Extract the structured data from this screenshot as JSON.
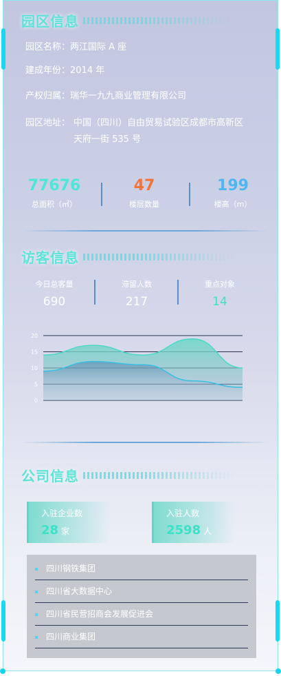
{
  "park": {
    "title": "园区信息",
    "rows": [
      {
        "label": "园区名称：",
        "value": "两江国际 A 座"
      },
      {
        "label": "建成年份：",
        "value": "2014 年"
      },
      {
        "label": "产权归属：",
        "value": "瑞华一九九商业管理有限公司"
      }
    ],
    "address": {
      "label": "园区地址：",
      "line1": "中国（四川）自由贸易试验区成都市高新区",
      "line2": "天府一街 535 号"
    },
    "stats": [
      {
        "value": "77676",
        "caption": "总面积（㎡）",
        "color": "#4ee6d6"
      },
      {
        "value": "47",
        "caption": "楼层数量",
        "color": "#f2743d"
      },
      {
        "value": "199",
        "caption": "楼高（m）",
        "color": "#4fb6f0"
      }
    ]
  },
  "visitor": {
    "title": "访客信息",
    "stats": [
      {
        "caption": "今日总客量",
        "value": "690"
      },
      {
        "caption": "滞留人数",
        "value": "217"
      },
      {
        "caption": "重点对象",
        "value": "14"
      }
    ]
  },
  "chart_data": {
    "type": "area",
    "x": [
      "",
      "",
      "",
      "",
      ""
    ],
    "yticks": [
      "20",
      "15",
      "10",
      "5",
      "0"
    ],
    "ylim": [
      0,
      20
    ],
    "series": [
      {
        "values": [
          14,
          17,
          14,
          19,
          10
        ],
        "color": "#4ed8c8"
      },
      {
        "values": [
          9,
          12,
          11,
          6,
          4
        ],
        "color": "#3bbfe0"
      }
    ]
  },
  "company": {
    "title": "公司信息",
    "cards": [
      {
        "label": "入驻企业数",
        "value": "28",
        "unit": "家"
      },
      {
        "label": "入驻人数",
        "value": "2598",
        "unit": "人"
      }
    ],
    "list": [
      "四川钢铁集团",
      "四川省大数据中心",
      "四川省民营招商会发展促进会",
      "四川商业集团"
    ]
  }
}
